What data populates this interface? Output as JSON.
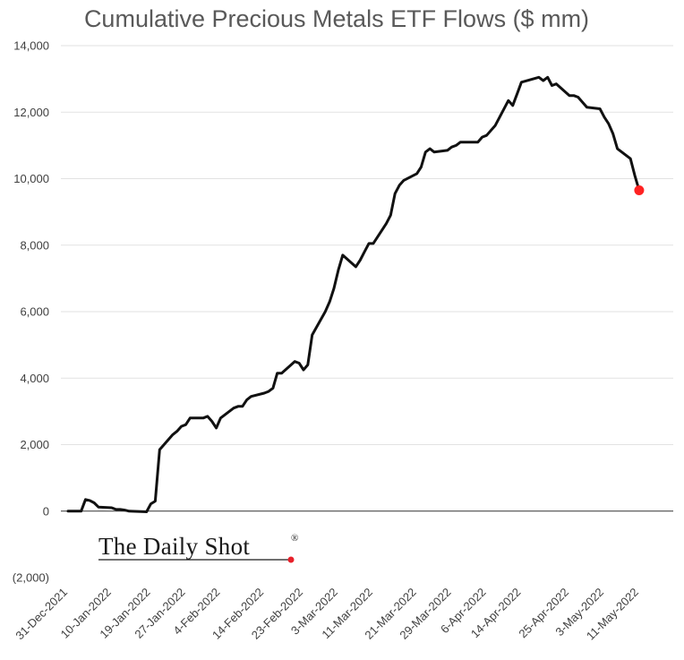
{
  "chart_data": {
    "type": "line",
    "title": "Cumulative Precious Metals ETF Flows ($ mm)",
    "xlabel": "",
    "ylabel": "",
    "ylim": [
      -2000,
      14000
    ],
    "y_ticks": [
      {
        "value": 14000,
        "label": "14,000"
      },
      {
        "value": 12000,
        "label": "12,000"
      },
      {
        "value": 10000,
        "label": "10,000"
      },
      {
        "value": 8000,
        "label": "8,000"
      },
      {
        "value": 6000,
        "label": "6,000"
      },
      {
        "value": 4000,
        "label": "4,000"
      },
      {
        "value": 2000,
        "label": "2,000"
      },
      {
        "value": 0,
        "label": "0"
      },
      {
        "value": -2000,
        "label": "(2,000)"
      }
    ],
    "x_ticks": [
      {
        "date": "2021-12-31",
        "label": "31-Dec-2021"
      },
      {
        "date": "2022-01-10",
        "label": "10-Jan-2022"
      },
      {
        "date": "2022-01-19",
        "label": "19-Jan-2022"
      },
      {
        "date": "2022-01-27",
        "label": "27-Jan-2022"
      },
      {
        "date": "2022-02-04",
        "label": "4-Feb-2022"
      },
      {
        "date": "2022-02-14",
        "label": "14-Feb-2022"
      },
      {
        "date": "2022-02-23",
        "label": "23-Feb-2022"
      },
      {
        "date": "2022-03-03",
        "label": "3-Mar-2022"
      },
      {
        "date": "2022-03-11",
        "label": "11-Mar-2022"
      },
      {
        "date": "2022-03-21",
        "label": "21-Mar-2022"
      },
      {
        "date": "2022-03-29",
        "label": "29-Mar-2022"
      },
      {
        "date": "2022-04-06",
        "label": "6-Apr-2022"
      },
      {
        "date": "2022-04-14",
        "label": "14-Apr-2022"
      },
      {
        "date": "2022-04-25",
        "label": "25-Apr-2022"
      },
      {
        "date": "2022-05-03",
        "label": "3-May-2022"
      },
      {
        "date": "2022-05-11",
        "label": "11-May-2022"
      }
    ],
    "x_range": [
      "2021-12-31",
      "2022-05-18"
    ],
    "grid": true,
    "series": [
      {
        "color": "#111111",
        "points": [
          [
            "2021-12-31",
            0
          ],
          [
            "2022-01-03",
            0
          ],
          [
            "2022-01-04",
            350
          ],
          [
            "2022-01-05",
            320
          ],
          [
            "2022-01-06",
            250
          ],
          [
            "2022-01-07",
            120
          ],
          [
            "2022-01-10",
            100
          ],
          [
            "2022-01-11",
            50
          ],
          [
            "2022-01-12",
            50
          ],
          [
            "2022-01-13",
            30
          ],
          [
            "2022-01-14",
            0
          ],
          [
            "2022-01-18",
            -20
          ],
          [
            "2022-01-19",
            220
          ],
          [
            "2022-01-20",
            300
          ],
          [
            "2022-01-21",
            1850
          ],
          [
            "2022-01-24",
            2300
          ],
          [
            "2022-01-25",
            2400
          ],
          [
            "2022-01-26",
            2550
          ],
          [
            "2022-01-27",
            2600
          ],
          [
            "2022-01-28",
            2800
          ],
          [
            "2022-01-31",
            2800
          ],
          [
            "2022-02-01",
            2850
          ],
          [
            "2022-02-02",
            2700
          ],
          [
            "2022-02-03",
            2500
          ],
          [
            "2022-02-04",
            2800
          ],
          [
            "2022-02-07",
            3100
          ],
          [
            "2022-02-08",
            3150
          ],
          [
            "2022-02-09",
            3150
          ],
          [
            "2022-02-10",
            3350
          ],
          [
            "2022-02-11",
            3450
          ],
          [
            "2022-02-14",
            3550
          ],
          [
            "2022-02-15",
            3600
          ],
          [
            "2022-02-16",
            3700
          ],
          [
            "2022-02-17",
            4150
          ],
          [
            "2022-02-18",
            4150
          ],
          [
            "2022-02-21",
            4500
          ],
          [
            "2022-02-22",
            4450
          ],
          [
            "2022-02-23",
            4250
          ],
          [
            "2022-02-24",
            4400
          ],
          [
            "2022-02-25",
            5300
          ],
          [
            "2022-02-28",
            6000
          ],
          [
            "2022-03-01",
            6300
          ],
          [
            "2022-03-02",
            6700
          ],
          [
            "2022-03-03",
            7250
          ],
          [
            "2022-03-04",
            7700
          ],
          [
            "2022-03-07",
            7350
          ],
          [
            "2022-03-08",
            7550
          ],
          [
            "2022-03-09",
            7800
          ],
          [
            "2022-03-10",
            8050
          ],
          [
            "2022-03-11",
            8050
          ],
          [
            "2022-03-14",
            8650
          ],
          [
            "2022-03-15",
            8900
          ],
          [
            "2022-03-16",
            9550
          ],
          [
            "2022-03-17",
            9800
          ],
          [
            "2022-03-18",
            9950
          ],
          [
            "2022-03-21",
            10150
          ],
          [
            "2022-03-22",
            10350
          ],
          [
            "2022-03-23",
            10800
          ],
          [
            "2022-03-24",
            10900
          ],
          [
            "2022-03-25",
            10800
          ],
          [
            "2022-03-28",
            10850
          ],
          [
            "2022-03-29",
            10950
          ],
          [
            "2022-03-30",
            11000
          ],
          [
            "2022-03-31",
            11100
          ],
          [
            "2022-04-01",
            11100
          ],
          [
            "2022-04-04",
            11100
          ],
          [
            "2022-04-05",
            11250
          ],
          [
            "2022-04-06",
            11300
          ],
          [
            "2022-04-07",
            11450
          ],
          [
            "2022-04-08",
            11600
          ],
          [
            "2022-04-11",
            12350
          ],
          [
            "2022-04-12",
            12200
          ],
          [
            "2022-04-13",
            12550
          ],
          [
            "2022-04-14",
            12900
          ],
          [
            "2022-04-18",
            13050
          ],
          [
            "2022-04-19",
            12950
          ],
          [
            "2022-04-20",
            13050
          ],
          [
            "2022-04-21",
            12800
          ],
          [
            "2022-04-22",
            12850
          ],
          [
            "2022-04-25",
            12500
          ],
          [
            "2022-04-26",
            12500
          ],
          [
            "2022-04-27",
            12450
          ],
          [
            "2022-04-28",
            12300
          ],
          [
            "2022-04-29",
            12150
          ],
          [
            "2022-05-02",
            12100
          ],
          [
            "2022-05-03",
            11850
          ],
          [
            "2022-05-04",
            11650
          ],
          [
            "2022-05-05",
            11350
          ],
          [
            "2022-05-06",
            10900
          ],
          [
            "2022-05-09",
            10600
          ],
          [
            "2022-05-10",
            10100
          ],
          [
            "2022-05-11",
            9650
          ]
        ]
      }
    ],
    "end_marker_color": "#ff2222",
    "watermark": "The Daily Shot",
    "watermark_mark": "®",
    "watermark_dot_color": "#e8202a"
  }
}
